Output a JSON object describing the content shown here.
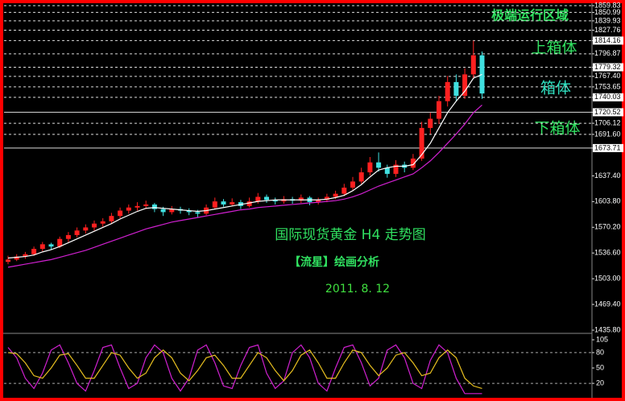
{
  "chart_data": {
    "type": "candlestick",
    "title": "国际现货黄金 H4 走势图",
    "subtitle": "【流星】绘画分析",
    "date": "2011. 8. 12",
    "annotations": [
      "极端运行区域",
      "上箱体",
      "箱体",
      "下箱体"
    ],
    "ylim": [
      1435.8,
      1859.83
    ],
    "yticks": [
      {
        "value": 1859.83,
        "label": "1859.83",
        "line": "dashed"
      },
      {
        "value": 1850.99,
        "label": "1850.99",
        "line": "dashed"
      },
      {
        "value": 1839.93,
        "label": "1839.93",
        "line": "dashed"
      },
      {
        "value": 1827.76,
        "label": "1827.76",
        "line": "dashed"
      },
      {
        "value": 1814.16,
        "label": "1814.16",
        "line": "dashed",
        "boxed": true
      },
      {
        "value": 1796.87,
        "label": "1796.87",
        "line": "dashed"
      },
      {
        "value": 1779.32,
        "label": "1779.32",
        "line": "dashed",
        "boxed": true
      },
      {
        "value": 1767.4,
        "label": "1767.40",
        "line": "dashed"
      },
      {
        "value": 1753.65,
        "label": "1753.65",
        "line": "dashed"
      },
      {
        "value": 1740.03,
        "label": "1740.03",
        "line": "dashed",
        "boxed": true
      },
      {
        "value": 1720.52,
        "label": "1720.52",
        "line": "solid",
        "boxed": true
      },
      {
        "value": 1706.12,
        "label": "1706.12",
        "line": "dashed"
      },
      {
        "value": 1691.6,
        "label": "1691.60",
        "line": "dashed"
      },
      {
        "value": 1673.71,
        "label": "1673.71",
        "line": "solid",
        "boxed": true
      },
      {
        "value": 1637.4,
        "label": "1637.40"
      },
      {
        "value": 1603.8,
        "label": "1603.80"
      },
      {
        "value": 1570.2,
        "label": "1570.20"
      },
      {
        "value": 1536.6,
        "label": "1536.60"
      },
      {
        "value": 1503,
        "label": "1503.00"
      },
      {
        "value": 1469.4,
        "label": "1469.40"
      },
      {
        "value": 1435.8,
        "label": "1435.80"
      }
    ],
    "up_color": "#ff2020",
    "down_color": "#40e0e0",
    "candles": [
      [
        1525,
        1533,
        1522,
        1528
      ],
      [
        1528,
        1535,
        1526,
        1532
      ],
      [
        1532,
        1538,
        1529,
        1535
      ],
      [
        1535,
        1545,
        1533,
        1542
      ],
      [
        1542,
        1551,
        1539,
        1548
      ],
      [
        1548,
        1550,
        1541,
        1545
      ],
      [
        1545,
        1558,
        1543,
        1555
      ],
      [
        1555,
        1564,
        1551,
        1560
      ],
      [
        1560,
        1570,
        1557,
        1566
      ],
      [
        1566,
        1574,
        1562,
        1570
      ],
      [
        1570,
        1579,
        1566,
        1575
      ],
      [
        1575,
        1582,
        1571,
        1578
      ],
      [
        1578,
        1589,
        1575,
        1585
      ],
      [
        1585,
        1596,
        1582,
        1592
      ],
      [
        1592,
        1600,
        1588,
        1596
      ],
      [
        1596,
        1603,
        1592,
        1598
      ],
      [
        1598,
        1605,
        1594,
        1600
      ],
      [
        1600,
        1602,
        1590,
        1594
      ],
      [
        1594,
        1597,
        1585,
        1590
      ],
      [
        1590,
        1598,
        1587,
        1594
      ],
      [
        1594,
        1597,
        1588,
        1592
      ],
      [
        1592,
        1595,
        1586,
        1590
      ],
      [
        1590,
        1593,
        1583,
        1588
      ],
      [
        1588,
        1600,
        1586,
        1596
      ],
      [
        1596,
        1609,
        1594,
        1604
      ],
      [
        1604,
        1607,
        1597,
        1600
      ],
      [
        1600,
        1608,
        1598,
        1603
      ],
      [
        1603,
        1606,
        1594,
        1598
      ],
      [
        1598,
        1609,
        1596,
        1604
      ],
      [
        1604,
        1615,
        1601,
        1610
      ],
      [
        1610,
        1613,
        1602,
        1606
      ],
      [
        1606,
        1609,
        1600,
        1604
      ],
      [
        1604,
        1611,
        1601,
        1607
      ],
      [
        1607,
        1610,
        1601,
        1605
      ],
      [
        1605,
        1613,
        1602,
        1609
      ],
      [
        1609,
        1611,
        1599,
        1603
      ],
      [
        1603,
        1609,
        1600,
        1606
      ],
      [
        1606,
        1614,
        1603,
        1610
      ],
      [
        1610,
        1618,
        1607,
        1614
      ],
      [
        1614,
        1627,
        1611,
        1622
      ],
      [
        1622,
        1636,
        1619,
        1630
      ],
      [
        1630,
        1648,
        1627,
        1642
      ],
      [
        1642,
        1662,
        1638,
        1655
      ],
      [
        1655,
        1668,
        1643,
        1648
      ],
      [
        1648,
        1652,
        1635,
        1640
      ],
      [
        1640,
        1658,
        1636,
        1652
      ],
      [
        1652,
        1656,
        1642,
        1648
      ],
      [
        1648,
        1666,
        1645,
        1660
      ],
      [
        1660,
        1708,
        1657,
        1700
      ],
      [
        1700,
        1720,
        1692,
        1712
      ],
      [
        1712,
        1742,
        1705,
        1735
      ],
      [
        1735,
        1768,
        1728,
        1760
      ],
      [
        1760,
        1770,
        1735,
        1742
      ],
      [
        1742,
        1778,
        1738,
        1770
      ],
      [
        1770,
        1814,
        1765,
        1795
      ],
      [
        1795,
        1800,
        1738,
        1745
      ]
    ],
    "series": [
      {
        "color": "#ffffff",
        "values": [
          1530,
          1531,
          1532,
          1534,
          1538,
          1541,
          1545,
          1550,
          1555,
          1560,
          1565,
          1570,
          1575,
          1581,
          1586,
          1591,
          1595,
          1596,
          1595,
          1594,
          1593,
          1592,
          1591,
          1592,
          1594,
          1596,
          1598,
          1600,
          1602,
          1604,
          1605,
          1606,
          1606,
          1606,
          1606,
          1606,
          1606,
          1607,
          1609,
          1612,
          1618,
          1626,
          1636,
          1645,
          1648,
          1650,
          1650,
          1652,
          1665,
          1680,
          1700,
          1720,
          1735,
          1748,
          1765,
          1770
        ]
      },
      {
        "color": "#d020d0",
        "values": [
          1518,
          1520,
          1522,
          1524,
          1526,
          1528,
          1531,
          1534,
          1537,
          1540,
          1544,
          1548,
          1552,
          1556,
          1560,
          1564,
          1568,
          1571,
          1574,
          1577,
          1579,
          1581,
          1583,
          1585,
          1587,
          1589,
          1591,
          1593,
          1594,
          1596,
          1597,
          1598,
          1599,
          1600,
          1601,
          1602,
          1603,
          1604,
          1605,
          1607,
          1610,
          1614,
          1619,
          1624,
          1628,
          1632,
          1636,
          1640,
          1648,
          1657,
          1668,
          1680,
          1692,
          1705,
          1720,
          1730
        ]
      }
    ],
    "oscillator": {
      "ylim": [
        -5,
        105
      ],
      "yticks": [
        {
          "value": 105
        },
        {
          "value": 80,
          "line": "dashed"
        },
        {
          "value": 50
        },
        {
          "value": 20,
          "line": "dashed"
        }
      ],
      "series": [
        {
          "color": "#d020d0",
          "values": [
            90,
            70,
            30,
            10,
            40,
            85,
            95,
            60,
            20,
            5,
            45,
            90,
            95,
            50,
            10,
            20,
            70,
            95,
            80,
            30,
            5,
            30,
            85,
            95,
            60,
            15,
            10,
            55,
            90,
            95,
            40,
            10,
            25,
            80,
            95,
            70,
            20,
            5,
            50,
            90,
            95,
            60,
            15,
            30,
            85,
            95,
            70,
            20,
            10,
            65,
            95,
            80,
            30,
            0,
            0,
            0
          ]
        },
        {
          "color": "#e8c020",
          "values": [
            80,
            78,
            60,
            35,
            30,
            50,
            75,
            78,
            55,
            30,
            30,
            55,
            80,
            75,
            50,
            30,
            40,
            70,
            85,
            70,
            40,
            25,
            45,
            70,
            75,
            55,
            30,
            30,
            55,
            80,
            70,
            45,
            25,
            45,
            75,
            85,
            60,
            30,
            30,
            60,
            85,
            80,
            55,
            35,
            50,
            75,
            80,
            60,
            35,
            40,
            70,
            85,
            70,
            30,
            15,
            10
          ]
        }
      ]
    }
  }
}
